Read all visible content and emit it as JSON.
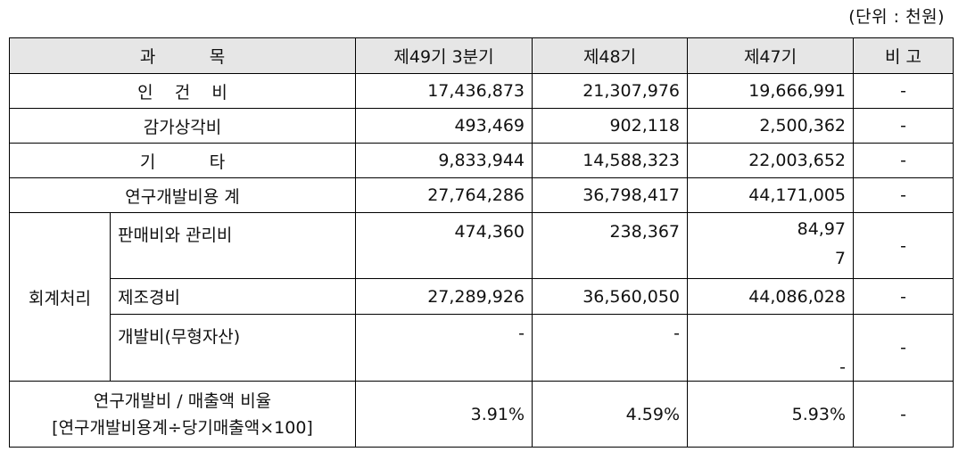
{
  "unit_note": "(단위 : 천원)",
  "headers": {
    "subject": "과          목",
    "col1": "제49기 3분기",
    "col2": "제48기",
    "col3": "제47기",
    "note": "비 고"
  },
  "rows": {
    "labor": {
      "label": "인    건    비",
      "c1": "17,436,873",
      "c2": "21,307,976",
      "c3": "19,666,991",
      "note": "-"
    },
    "depreciation": {
      "label": "감가상각비",
      "c1": "493,469",
      "c2": "902,118",
      "c3": "2,500,362",
      "note": "-"
    },
    "other": {
      "label": "기          타",
      "c1": "9,833,944",
      "c2": "14,588,323",
      "c3": "22,003,652",
      "note": "-"
    },
    "rd_total": {
      "label": "연구개발비용 계",
      "c1": "27,764,286",
      "c2": "36,798,417",
      "c3": "44,171,005",
      "note": "-"
    }
  },
  "accounting": {
    "group_label": "회계처리",
    "sga": {
      "label": "판매비와 관리비",
      "c1": "474,360",
      "c2": "238,367",
      "c3_line1": "84,97",
      "c3_line2": "7",
      "note": "-"
    },
    "manufacturing": {
      "label": "제조경비",
      "c1": "27,289,926",
      "c2": "36,560,050",
      "c3": "44,086,028",
      "note": "-"
    },
    "development": {
      "label": "개발비(무형자산)",
      "c1": "-",
      "c2": "-",
      "c3": "-",
      "note": "-"
    }
  },
  "ratio": {
    "label_line1": "연구개발비 / 매출액 비율",
    "label_line2": "[연구개발비용계÷당기매출액×100]",
    "c1": "3.91%",
    "c2": "4.59%",
    "c3": "5.93%",
    "note": "-"
  }
}
